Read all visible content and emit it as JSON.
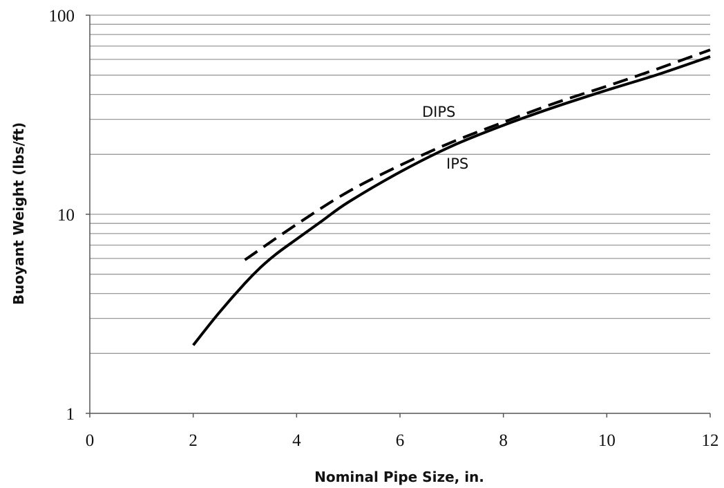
{
  "chart_data": {
    "type": "line",
    "title": "",
    "xlabel": "Nominal Pipe Size, in.",
    "ylabel": "Buoyant Weight (lbs/ft)",
    "xlim": [
      0,
      12
    ],
    "ylim": [
      1,
      100
    ],
    "yscale": "log",
    "grid": "horizontal, at every minor log tick",
    "legend": "none; series labeled directly on the plot",
    "x_ticks": [
      "0",
      "2",
      "4",
      "6",
      "8",
      "10",
      "12"
    ],
    "y_ticks": [
      "1",
      "10",
      "100"
    ],
    "series": [
      {
        "name": "DIPS",
        "style": "dashed",
        "color": "#000000",
        "x": [
          3,
          4,
          5,
          6,
          7,
          8,
          9,
          10,
          11,
          12
        ],
        "y": [
          5.9,
          8.9,
          13.0,
          17.6,
          23.0,
          29.0,
          36.2,
          44.0,
          54.0,
          67.0
        ]
      },
      {
        "name": "IPS",
        "style": "solid",
        "color": "#000000",
        "x": [
          2,
          2.5,
          3,
          3.3,
          3.6,
          4,
          4.5,
          5,
          6,
          7,
          8,
          9,
          10,
          11,
          12
        ],
        "y": [
          2.2,
          3.2,
          4.5,
          5.4,
          6.3,
          7.5,
          9.3,
          11.5,
          16.3,
          22.0,
          28.0,
          34.6,
          42.0,
          50.5,
          62.0
        ]
      }
    ]
  }
}
